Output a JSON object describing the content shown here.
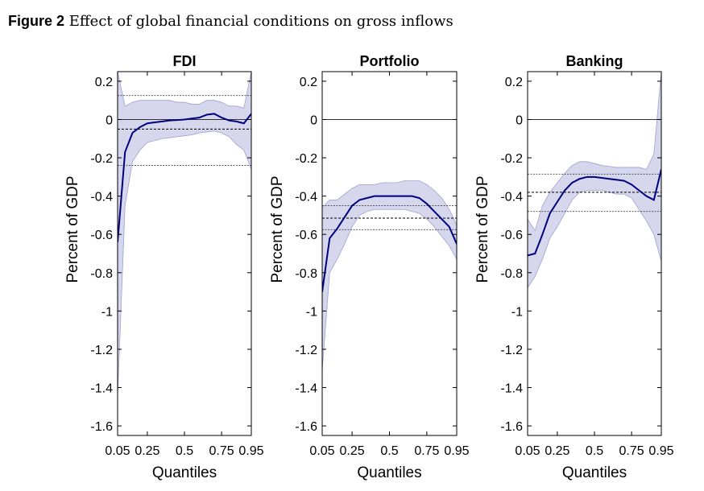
{
  "figure": {
    "label": "Figure 2",
    "caption": "Effect of global financial conditions on gross inflows"
  },
  "colors": {
    "line": "#00007f",
    "band_fill": "#d6d6ec",
    "band_edge": "#a0a0d2",
    "axis": "#000000",
    "reference": "#444444"
  },
  "chart_data": [
    {
      "type": "line",
      "title": "FDI",
      "xlabel": "Quantiles",
      "ylabel": "Percent of GDP",
      "xlim": [
        0.05,
        0.95
      ],
      "ylim": [
        -1.65,
        0.25
      ],
      "xticks": [
        0.05,
        0.25,
        0.5,
        0.75,
        0.95
      ],
      "xtick_labels": [
        "0.05",
        "0.25",
        "0.5",
        "0.75",
        "0.95"
      ],
      "yticks": [
        0.2,
        0,
        -0.2,
        -0.4,
        -0.6,
        -0.8,
        -1,
        -1.2,
        -1.4,
        -1.6
      ],
      "ytick_labels": [
        "0.2",
        "0",
        "-0.2",
        "-0.4",
        "-0.6",
        "-0.8",
        "-1",
        "-1.2",
        "-1.4",
        "-1.6"
      ],
      "grid": false,
      "zero_line": true,
      "x": [
        0.05,
        0.1,
        0.15,
        0.2,
        0.25,
        0.3,
        0.35,
        0.4,
        0.45,
        0.5,
        0.55,
        0.6,
        0.65,
        0.7,
        0.75,
        0.8,
        0.85,
        0.9,
        0.95
      ],
      "series": [
        {
          "values": [
            -0.64,
            -0.17,
            -0.07,
            -0.04,
            -0.02,
            -0.015,
            -0.01,
            -0.005,
            -0.003,
            0.0,
            0.005,
            0.01,
            0.025,
            0.03,
            0.01,
            -0.005,
            -0.01,
            -0.02,
            0.03
          ]
        }
      ],
      "band_upper": [
        0.25,
        0.07,
        0.09,
        0.1,
        0.1,
        0.1,
        0.1,
        0.1,
        0.09,
        0.09,
        0.08,
        0.08,
        0.1,
        0.1,
        0.09,
        0.07,
        0.07,
        0.06,
        0.25
      ],
      "band_lower": [
        -1.45,
        -0.45,
        -0.22,
        -0.16,
        -0.12,
        -0.11,
        -0.1,
        -0.095,
        -0.09,
        -0.085,
        -0.08,
        -0.07,
        -0.065,
        -0.06,
        -0.07,
        -0.09,
        -0.13,
        -0.16,
        -0.26
      ],
      "reference_lines": [
        0.125,
        -0.05,
        -0.24
      ]
    },
    {
      "type": "line",
      "title": "Portfolio",
      "xlabel": "Quantiles",
      "ylabel": "Percent of GDP",
      "xlim": [
        0.05,
        0.95
      ],
      "ylim": [
        -1.65,
        0.25
      ],
      "xticks": [
        0.05,
        0.25,
        0.5,
        0.75,
        0.95
      ],
      "xtick_labels": [
        "0.05",
        "0.25",
        "0.5",
        "0.75",
        "0.95"
      ],
      "yticks": [
        0.2,
        0,
        -0.2,
        -0.4,
        -0.6,
        -0.8,
        -1,
        -1.2,
        -1.4,
        -1.6
      ],
      "ytick_labels": [
        "0.2",
        "0",
        "-0.2",
        "-0.4",
        "-0.6",
        "-0.8",
        "-1",
        "-1.2",
        "-1.4",
        "-1.6"
      ],
      "grid": false,
      "zero_line": true,
      "x": [
        0.05,
        0.1,
        0.15,
        0.2,
        0.25,
        0.3,
        0.35,
        0.4,
        0.45,
        0.5,
        0.55,
        0.6,
        0.65,
        0.7,
        0.75,
        0.8,
        0.85,
        0.9,
        0.95
      ],
      "series": [
        {
          "values": [
            -0.9,
            -0.62,
            -0.57,
            -0.51,
            -0.45,
            -0.42,
            -0.41,
            -0.4,
            -0.4,
            -0.4,
            -0.4,
            -0.4,
            -0.4,
            -0.41,
            -0.44,
            -0.48,
            -0.52,
            -0.56,
            -0.65
          ]
        }
      ],
      "band_upper": [
        -0.46,
        -0.42,
        -0.42,
        -0.39,
        -0.36,
        -0.34,
        -0.34,
        -0.34,
        -0.33,
        -0.33,
        -0.33,
        -0.32,
        -0.32,
        -0.32,
        -0.34,
        -0.37,
        -0.41,
        -0.47,
        -0.55
      ],
      "band_lower": [
        -1.31,
        -0.8,
        -0.73,
        -0.65,
        -0.56,
        -0.5,
        -0.48,
        -0.47,
        -0.47,
        -0.47,
        -0.47,
        -0.47,
        -0.48,
        -0.49,
        -0.52,
        -0.56,
        -0.61,
        -0.66,
        -0.73
      ],
      "reference_lines": [
        -0.45,
        -0.515,
        -0.575
      ]
    },
    {
      "type": "line",
      "title": "Banking",
      "xlabel": "Quantiles",
      "ylabel": "Percent of GDP",
      "xlim": [
        0.05,
        0.95
      ],
      "ylim": [
        -1.65,
        0.25
      ],
      "xticks": [
        0.05,
        0.25,
        0.5,
        0.75,
        0.95
      ],
      "xtick_labels": [
        "0.05",
        "0.25",
        "0.5",
        "0.75",
        "0.95"
      ],
      "yticks": [
        0.2,
        0,
        -0.2,
        -0.4,
        -0.6,
        -0.8,
        -1,
        -1.2,
        -1.4,
        -1.6
      ],
      "ytick_labels": [
        "0.2",
        "0",
        "-0.2",
        "-0.4",
        "-0.6",
        "-0.8",
        "-1",
        "-1.2",
        "-1.4",
        "-1.6"
      ],
      "grid": false,
      "zero_line": true,
      "x": [
        0.05,
        0.1,
        0.15,
        0.2,
        0.25,
        0.3,
        0.35,
        0.4,
        0.45,
        0.5,
        0.55,
        0.6,
        0.65,
        0.7,
        0.75,
        0.8,
        0.85,
        0.9,
        0.95
      ],
      "series": [
        {
          "values": [
            -0.71,
            -0.7,
            -0.6,
            -0.49,
            -0.43,
            -0.37,
            -0.33,
            -0.31,
            -0.3,
            -0.3,
            -0.305,
            -0.31,
            -0.315,
            -0.32,
            -0.34,
            -0.37,
            -0.4,
            -0.42,
            -0.26
          ]
        }
      ],
      "band_upper": [
        -0.52,
        -0.58,
        -0.45,
        -0.38,
        -0.33,
        -0.28,
        -0.24,
        -0.22,
        -0.22,
        -0.23,
        -0.24,
        -0.245,
        -0.25,
        -0.25,
        -0.25,
        -0.25,
        -0.26,
        -0.18,
        0.25
      ],
      "band_lower": [
        -0.88,
        -0.82,
        -0.73,
        -0.62,
        -0.56,
        -0.49,
        -0.42,
        -0.38,
        -0.37,
        -0.37,
        -0.37,
        -0.38,
        -0.39,
        -0.39,
        -0.41,
        -0.47,
        -0.53,
        -0.6,
        -0.74
      ],
      "reference_lines": [
        -0.285,
        -0.38,
        -0.48
      ]
    }
  ]
}
